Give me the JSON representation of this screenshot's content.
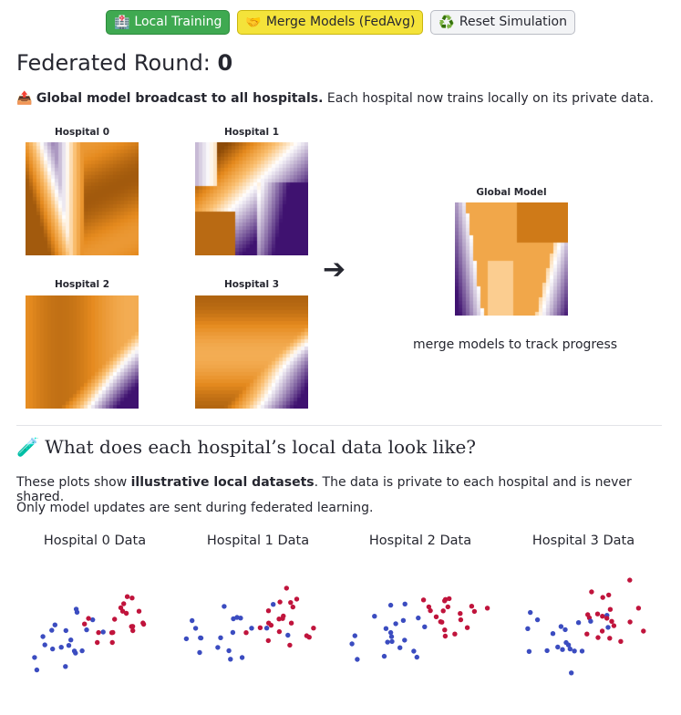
{
  "toolbar": {
    "train_label": "Local Training",
    "merge_label": "Merge Models (FedAvg)",
    "reset_label": "Reset Simulation",
    "train_icon": "🏥",
    "merge_icon": "🤝",
    "reset_icon": "♻️"
  },
  "round": {
    "label": "Federated Round:",
    "value": "0"
  },
  "status": {
    "icon": "📤",
    "lead": "Global model broadcast to all hospitals.",
    "rest": " Each hospital now trains locally on its private data."
  },
  "models": {
    "hospitals": [
      {
        "title": "Hospital 0"
      },
      {
        "title": "Hospital 1"
      },
      {
        "title": "Hospital 2"
      },
      {
        "title": "Hospital 3"
      }
    ],
    "arrow": "➔",
    "global_title": "Global Model",
    "hint": "merge models to track progress"
  },
  "section": {
    "icon": "🧪",
    "title": "What does each hospital’s local data look like?",
    "para1_pre": "These plots show ",
    "para1_bold": "illustrative local datasets",
    "para1_post": ". The data is private to each hospital and is never shared.",
    "para2": "Only model updates are sent during federated learning."
  },
  "datasets": [
    {
      "title": "Hospital 0 Data"
    },
    {
      "title": "Hospital 1 Data"
    },
    {
      "title": "Hospital 2 Data"
    },
    {
      "title": "Hospital 3 Data"
    }
  ],
  "colors": {
    "class_a": "#3b4cc0",
    "class_b": "#c0143c",
    "heat_dark": "#3f1270",
    "heat_mid": "#ffffff",
    "heat_orange": "#e58a1e",
    "heat_brown": "#8c4a07"
  }
}
